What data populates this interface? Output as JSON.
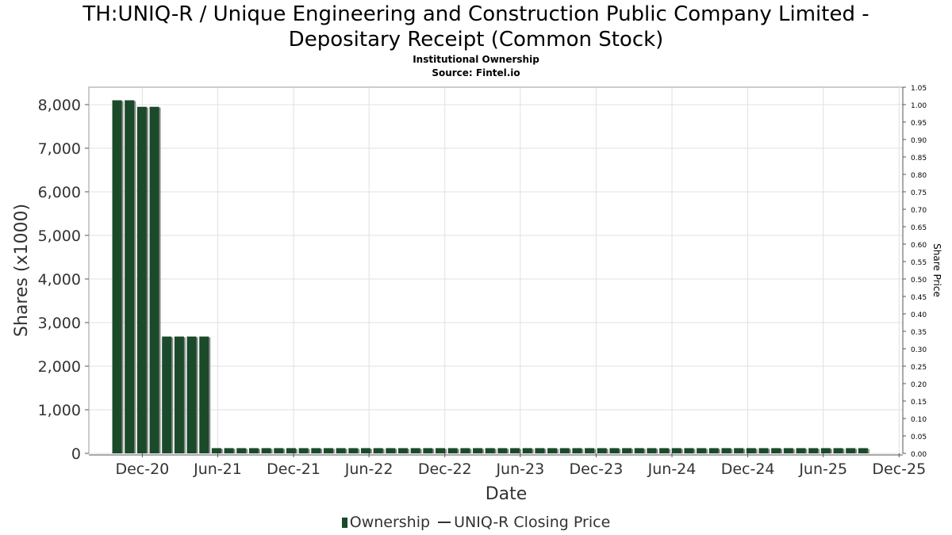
{
  "header": {
    "title_line1": "TH:UNIQ-R / Unique Engineering and Construction Public Company Limited -",
    "title_line2": "Depositary Receipt (Common Stock)",
    "subtitle": "Institutional Ownership",
    "source": "Source: Fintel.io"
  },
  "legend": {
    "ownership": "Ownership",
    "price": "UNIQ-R Closing Price"
  },
  "colors": {
    "bar": "#1a4a2a",
    "bar_shadow": "#8a8a8a",
    "grid": "#e0e0e0",
    "axis": "#555555"
  },
  "chart_data": {
    "type": "bar",
    "xlabel": "Date",
    "ylabel": "Shares (x1000)",
    "y2label": "Share Price",
    "ylim": [
      0,
      8400
    ],
    "y_ticks": [
      0,
      1000,
      2000,
      3000,
      4000,
      5000,
      6000,
      7000,
      8000
    ],
    "y_tick_labels": [
      "0",
      "1,000",
      "2,000",
      "3,000",
      "4,000",
      "5,000",
      "6,000",
      "7,000",
      "8,000"
    ],
    "y2lim": [
      0,
      1.05
    ],
    "y2_ticks": [
      "0.00",
      "0.05",
      "0.10",
      "0.15",
      "0.20",
      "0.25",
      "0.30",
      "0.35",
      "0.40",
      "0.45",
      "0.50",
      "0.55",
      "0.60",
      "0.65",
      "0.70",
      "0.75",
      "0.80",
      "0.85",
      "0.90",
      "0.95",
      "1.00",
      "1.05"
    ],
    "x_ticks": [
      "Dec-20",
      "Jun-21",
      "Dec-21",
      "Jun-22",
      "Dec-22",
      "Jun-23",
      "Dec-23",
      "Jun-24",
      "Dec-24",
      "Jun-25",
      "Dec-25"
    ],
    "x_start": "2020-07-25",
    "x_end": "2025-12-10",
    "bar_dates": [
      "2020-10-01",
      "2020-10-31",
      "2020-11-30",
      "2020-12-30",
      "2021-01-29",
      "2021-02-28",
      "2021-03-30",
      "2021-04-29",
      "2021-05-29",
      "2021-06-28",
      "2021-07-28",
      "2021-08-27",
      "2021-09-26",
      "2021-10-26",
      "2021-11-25",
      "2021-12-25",
      "2022-01-24",
      "2022-02-23",
      "2022-03-25",
      "2022-04-24",
      "2022-05-24",
      "2022-06-23",
      "2022-07-23",
      "2022-08-22",
      "2022-09-21",
      "2022-10-21",
      "2022-11-20",
      "2022-12-20",
      "2023-01-19",
      "2023-02-18",
      "2023-03-20",
      "2023-04-19",
      "2023-05-19",
      "2023-06-18",
      "2023-07-18",
      "2023-08-17",
      "2023-09-16",
      "2023-10-16",
      "2023-11-15",
      "2023-12-15",
      "2024-01-14",
      "2024-02-13",
      "2024-03-14",
      "2024-04-13",
      "2024-05-13",
      "2024-06-12",
      "2024-07-12",
      "2024-08-11",
      "2024-09-10",
      "2024-10-10",
      "2024-11-09",
      "2024-12-09",
      "2025-01-08",
      "2025-02-07",
      "2025-03-09",
      "2025-04-08",
      "2025-05-08",
      "2025-06-07",
      "2025-07-07",
      "2025-08-06",
      "2025-09-05"
    ],
    "values": [
      8100,
      8100,
      7950,
      7950,
      2680,
      2680,
      2680,
      2680,
      120,
      120,
      120,
      120,
      120,
      120,
      120,
      120,
      120,
      120,
      120,
      120,
      120,
      120,
      120,
      120,
      120,
      120,
      120,
      120,
      120,
      120,
      120,
      120,
      120,
      120,
      120,
      120,
      120,
      120,
      120,
      120,
      120,
      120,
      120,
      120,
      120,
      120,
      120,
      120,
      120,
      120,
      120,
      120,
      120,
      120,
      120,
      120,
      120,
      120,
      120,
      120,
      120
    ],
    "series": [
      {
        "name": "Ownership"
      },
      {
        "name": "UNIQ-R Closing Price"
      }
    ],
    "grid": true,
    "legend_position": "bottom"
  }
}
